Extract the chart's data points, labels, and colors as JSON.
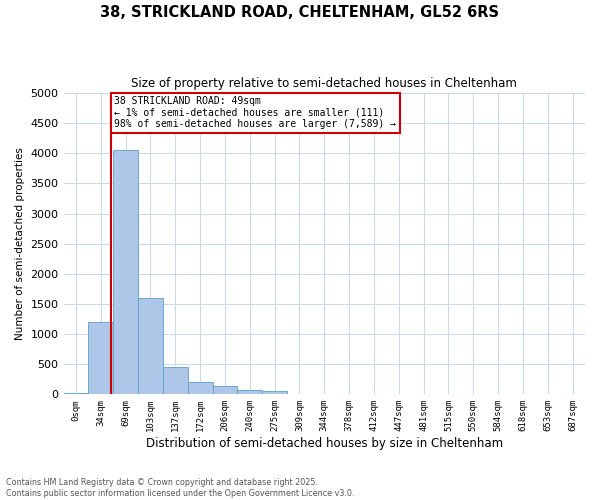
{
  "title_line1": "38, STRICKLAND ROAD, CHELTENHAM, GL52 6RS",
  "title_line2": "Size of property relative to semi-detached houses in Cheltenham",
  "xlabel": "Distribution of semi-detached houses by size in Cheltenham",
  "ylabel": "Number of semi-detached properties",
  "bar_color": "#aec6e8",
  "bar_edge_color": "#5a9fc8",
  "background_color": "#ffffff",
  "grid_color": "#c8d8ea",
  "annotation_box_color": "#cc0000",
  "vline_color": "#cc0000",
  "categories": [
    "0sqm",
    "34sqm",
    "69sqm",
    "103sqm",
    "137sqm",
    "172sqm",
    "206sqm",
    "240sqm",
    "275sqm",
    "309sqm",
    "344sqm",
    "378sqm",
    "412sqm",
    "447sqm",
    "481sqm",
    "515sqm",
    "550sqm",
    "584sqm",
    "618sqm",
    "653sqm",
    "687sqm"
  ],
  "values": [
    25,
    1200,
    4050,
    1600,
    460,
    210,
    140,
    75,
    60,
    0,
    0,
    0,
    0,
    0,
    0,
    0,
    0,
    0,
    0,
    0,
    0
  ],
  "ylim": [
    0,
    5000
  ],
  "yticks": [
    0,
    500,
    1000,
    1500,
    2000,
    2500,
    3000,
    3500,
    4000,
    4500,
    5000
  ],
  "property_label": "38 STRICKLAND ROAD: 49sqm",
  "annotation_line2": "← 1% of semi-detached houses are smaller (111)",
  "annotation_line3": "98% of semi-detached houses are larger (7,589) →",
  "vline_x_idx": 1.43,
  "footer_line1": "Contains HM Land Registry data © Crown copyright and database right 2025.",
  "footer_line2": "Contains public sector information licensed under the Open Government Licence v3.0."
}
